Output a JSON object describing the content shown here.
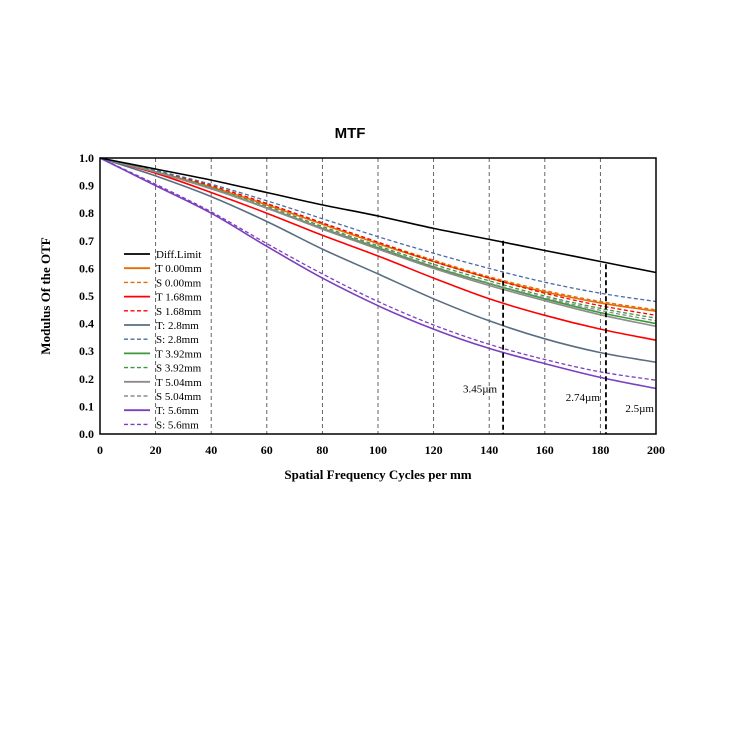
{
  "chart_data": {
    "type": "line",
    "title": "MTF",
    "xlabel": "Spatial Frequency Cycles per mm",
    "ylabel": "Modulus Of  the OTF",
    "xlim": [
      0,
      200
    ],
    "ylim": [
      0,
      1
    ],
    "x_ticks": [
      "0",
      "20",
      "40",
      "60",
      "80",
      "100",
      "120",
      "140",
      "160",
      "180",
      "200"
    ],
    "y_ticks": [
      "0.0",
      "0.1",
      "0.2",
      "0.3",
      "0.4",
      "0.5",
      "0.6",
      "0.7",
      "0.8",
      "0.9",
      "1.0"
    ],
    "grid": "vertical dashed",
    "legend_position": "left-center",
    "x": [
      0,
      20,
      40,
      60,
      80,
      100,
      120,
      140,
      160,
      180,
      200
    ],
    "series": [
      {
        "name": "Diff.Limit",
        "color": "#000000",
        "dash": false,
        "values": [
          1.0,
          0.96,
          0.92,
          0.875,
          0.83,
          0.79,
          0.745,
          0.705,
          0.665,
          0.625,
          0.585
        ]
      },
      {
        "name": "T 0.00mm",
        "color": "#e36c09",
        "dash": false,
        "values": [
          1.0,
          0.95,
          0.895,
          0.83,
          0.76,
          0.69,
          0.625,
          0.565,
          0.515,
          0.475,
          0.445
        ]
      },
      {
        "name": "S 0.00mm",
        "color": "#e36c09",
        "dash": true,
        "values": [
          1.0,
          0.952,
          0.9,
          0.835,
          0.765,
          0.695,
          0.63,
          0.57,
          0.52,
          0.48,
          0.45
        ]
      },
      {
        "name": "T 1.68mm",
        "color": "#ff0000",
        "dash": false,
        "values": [
          1.0,
          0.945,
          0.875,
          0.8,
          0.72,
          0.645,
          0.565,
          0.49,
          0.43,
          0.38,
          0.34
        ]
      },
      {
        "name": "S 1.68mm",
        "color": "#ff0000",
        "dash": true,
        "values": [
          1.0,
          0.952,
          0.9,
          0.835,
          0.765,
          0.695,
          0.625,
          0.565,
          0.51,
          0.465,
          0.43
        ]
      },
      {
        "name": "T: 2.8mm",
        "color": "#5a6d80",
        "dash": false,
        "values": [
          1.0,
          0.935,
          0.86,
          0.77,
          0.67,
          0.58,
          0.49,
          0.41,
          0.345,
          0.295,
          0.26
        ]
      },
      {
        "name": "S: 2.8mm",
        "color": "#4a6aa8",
        "dash": true,
        "values": [
          1.0,
          0.955,
          0.905,
          0.845,
          0.78,
          0.715,
          0.655,
          0.6,
          0.55,
          0.51,
          0.48
        ]
      },
      {
        "name": "T 3.92mm",
        "color": "#3a9a3a",
        "dash": false,
        "values": [
          1.0,
          0.95,
          0.89,
          0.82,
          0.745,
          0.675,
          0.605,
          0.545,
          0.49,
          0.44,
          0.4
        ]
      },
      {
        "name": "S 3.92mm",
        "color": "#3a9a3a",
        "dash": true,
        "values": [
          1.0,
          0.951,
          0.893,
          0.825,
          0.752,
          0.682,
          0.615,
          0.555,
          0.5,
          0.455,
          0.42
        ]
      },
      {
        "name": "T 5.04mm",
        "color": "#8c8c8c",
        "dash": false,
        "values": [
          1.0,
          0.949,
          0.888,
          0.818,
          0.742,
          0.67,
          0.6,
          0.538,
          0.483,
          0.432,
          0.39
        ]
      },
      {
        "name": "S 5.04mm",
        "color": "#8c8c8c",
        "dash": true,
        "values": [
          1.0,
          0.95,
          0.891,
          0.822,
          0.748,
          0.677,
          0.608,
          0.547,
          0.494,
          0.448,
          0.41
        ]
      },
      {
        "name": "T: 5.6mm",
        "color": "#7b3fbf",
        "dash": false,
        "values": [
          1.0,
          0.9,
          0.8,
          0.68,
          0.565,
          0.465,
          0.38,
          0.31,
          0.255,
          0.205,
          0.165
        ]
      },
      {
        "name": "S: 5.6mm",
        "color": "#7b3fbf",
        "dash": true,
        "values": [
          1.0,
          0.905,
          0.805,
          0.69,
          0.58,
          0.48,
          0.395,
          0.325,
          0.27,
          0.225,
          0.195
        ]
      }
    ],
    "annotations": [
      {
        "text": "3.45µm",
        "x": 145
      },
      {
        "text": "2.74µm",
        "x": 182
      },
      {
        "text": "2.5µm",
        "x": 200
      }
    ]
  }
}
